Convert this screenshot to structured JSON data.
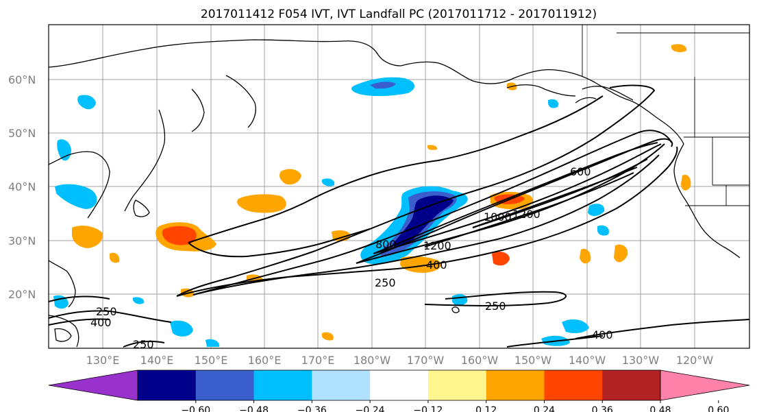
{
  "title": "2017011412 F054 IVT, IVT Landfall PC (2017011712 - 2017011912)",
  "lat_labels": [
    "20°N",
    "30°N",
    "40°N",
    "50°N",
    "60°N"
  ],
  "lon_labels": [
    "130°E",
    "140°E",
    "150°E",
    "160°E",
    "170°E",
    "180°W",
    "170°W",
    "160°W",
    "150°W",
    "140°W",
    "130°W",
    "120°W"
  ],
  "colorbar": {
    "colors": [
      "#9932cc",
      "#00008b",
      "#3a5fcd",
      "#00bfff",
      "#b0e2ff",
      "#ffffff",
      "#fff68f",
      "#ffa500",
      "#ff4500",
      "#b22222",
      "#ff82ab"
    ],
    "ticks": [
      "−0.60",
      "−0.48",
      "−0.36",
      "−0.24",
      "−0.12",
      "0.12",
      "0.24",
      "0.36",
      "0.48",
      "0.60"
    ]
  },
  "contour_labels": [
    "250",
    "400",
    "600",
    "800",
    "1000",
    "1200",
    "1200",
    "400",
    "250",
    "250",
    "400",
    "250",
    "400"
  ],
  "colors": {
    "pc_positive_light": "#fff68f",
    "pc_positive": "#ffa500",
    "pc_positive_strong": "#ff4500",
    "pc_negative_light": "#b0e2ff",
    "pc_negative": "#00bfff",
    "pc_negative_mid": "#3a5fcd",
    "pc_negative_strong": "#00008b"
  }
}
